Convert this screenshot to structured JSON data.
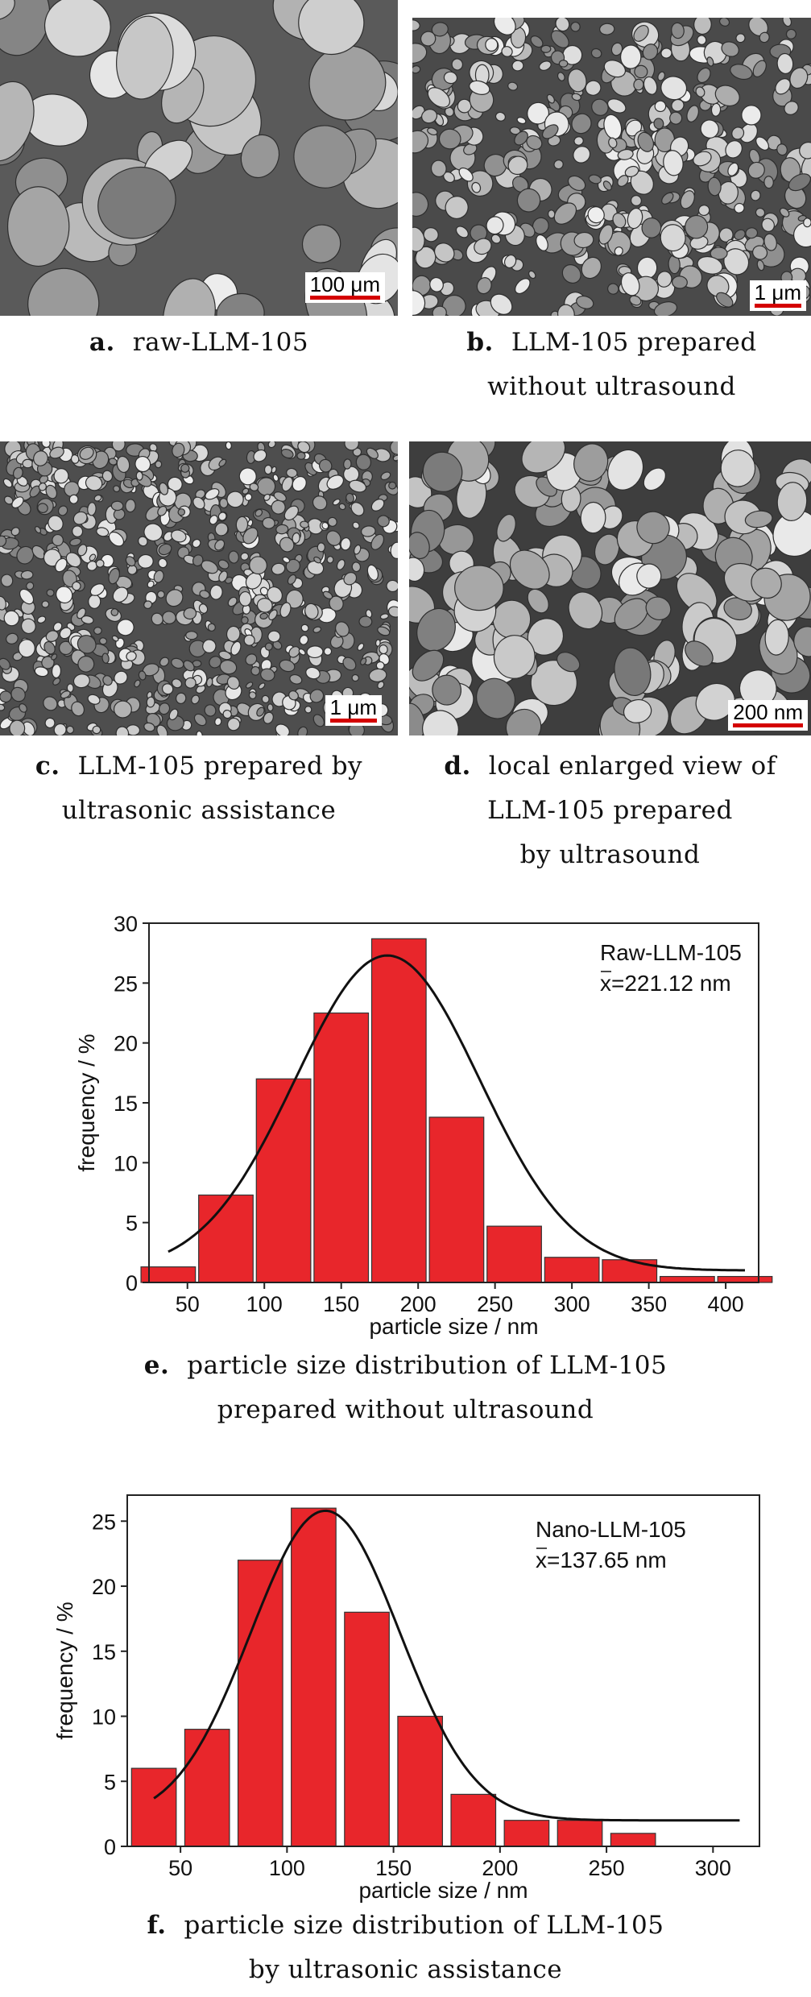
{
  "panels": [
    {
      "id": "a",
      "scale": "100 μm",
      "letter": "a.",
      "caption": [
        "raw-LLM-105"
      ]
    },
    {
      "id": "b",
      "scale": "1 μm",
      "letter": "b.",
      "caption": [
        "LLM-105 prepared",
        "without ultrasound"
      ]
    },
    {
      "id": "c",
      "scale": "1 μm",
      "letter": "c.",
      "caption": [
        "LLM-105 prepared by",
        "ultrasonic assistance"
      ]
    },
    {
      "id": "d",
      "scale": "200 nm",
      "letter": "d.",
      "caption": [
        "local enlarged view of",
        "LLM-105 prepared",
        "by ultrasound"
      ]
    }
  ],
  "charts": [
    {
      "letter": "e.",
      "caption": [
        "particle size distribution of LLM-105",
        "prepared without ultrasound"
      ]
    },
    {
      "letter": "f.",
      "caption": [
        "particle size distribution of LLM-105",
        "by ultrasonic assistance"
      ]
    }
  ],
  "colors": {
    "bar_fill": "#e8262b",
    "bar_stroke": "#333333",
    "curve": "#111111",
    "scale_bar": "#d40000"
  },
  "chart_data": [
    {
      "type": "bar",
      "ylabel": "frequency / %",
      "xlabel": "particle size / nm",
      "ylim": [
        0,
        30
      ],
      "yticks": [
        0,
        5,
        10,
        15,
        20,
        25,
        30
      ],
      "xlim": [
        25,
        412
      ],
      "xticks": [
        50,
        100,
        150,
        200,
        250,
        300,
        350,
        400
      ],
      "bin_width": 37.5,
      "centers": [
        37.5,
        75,
        112.5,
        150,
        187.5,
        225,
        262.5,
        300,
        337.5,
        375,
        412.5
      ],
      "values": [
        1.3,
        7.3,
        17,
        22.5,
        28.7,
        13.8,
        4.7,
        2.1,
        1.9,
        0.5,
        0.5
      ],
      "fit_curve": {
        "type": "gaussian",
        "peak_x": 180,
        "peak_y": 27.3,
        "sigma": 60
      },
      "annotation": [
        "Raw-LLM-105",
        "x=221.12 nm"
      ]
    },
    {
      "type": "bar",
      "ylabel": "frequency / %",
      "xlabel": "particle size / nm",
      "ylim": [
        0,
        27
      ],
      "yticks": [
        0,
        5,
        10,
        15,
        20,
        25
      ],
      "xlim": [
        25,
        315
      ],
      "xticks": [
        50,
        100,
        150,
        200,
        250,
        300
      ],
      "bin_width": 22.5,
      "centers": [
        37.5,
        62.5,
        87.5,
        112.5,
        137.5,
        162.5,
        187.5,
        212.5,
        237.5,
        262.5,
        287.5,
        312.5
      ],
      "values": [
        6,
        9,
        22,
        26,
        18,
        10,
        4,
        2,
        2,
        1,
        0,
        0
      ],
      "fit_curve": {
        "type": "gaussian",
        "peak_x": 118,
        "peak_y": 25.8,
        "sigma": 35
      },
      "annotation": [
        "Nano-LLM-105",
        "x=137.65 nm"
      ]
    }
  ]
}
